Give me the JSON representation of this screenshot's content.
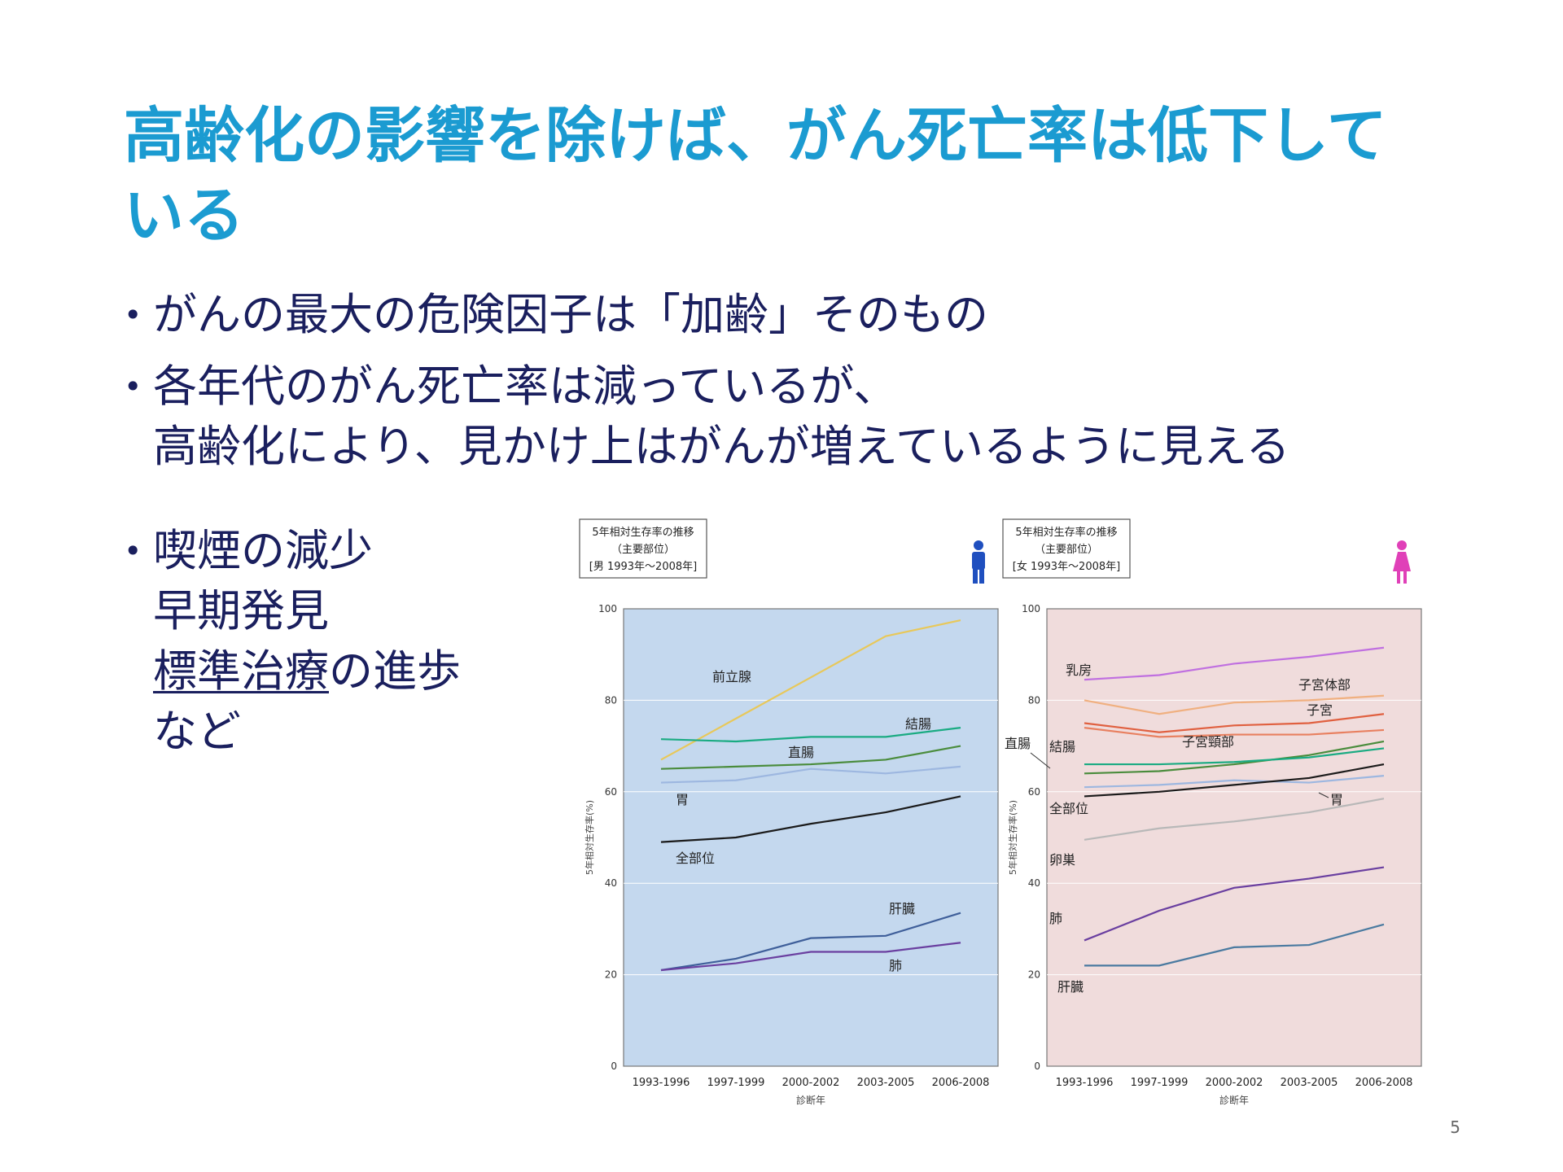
{
  "title": {
    "line1": "高齢化の影響を除けば、がん死亡率は低下して",
    "line2": "いる"
  },
  "bullets": [
    {
      "lines": [
        "がんの最大の危険因子は「加齢」そのもの"
      ]
    },
    {
      "lines": [
        "各年代のがん死亡率は減っているが、",
        "高齢化により、見かけ上はがんが増えているように見える"
      ]
    },
    {
      "lines": [
        "喫煙の減少",
        "早期発見",
        "標準治療の進歩",
        "など"
      ],
      "underlined": "標準治療"
    }
  ],
  "page_number": "5",
  "chart_data": [
    {
      "type": "line",
      "legend_box": [
        "5年相対生存率の推移",
        "（主要部位）",
        "[男 1993年～2008年]"
      ],
      "gender_icon": "male-figure-icon",
      "gender_color": "#1f4fbf",
      "background": "#c4d8ee",
      "categories": [
        "1993-1996",
        "1997-1999",
        "2000-2002",
        "2003-2005",
        "2006-2008"
      ],
      "ylabel": "5年相対生存率(%)",
      "xlabel": "診断年",
      "ylim": [
        0,
        100
      ],
      "yticks": [
        0,
        20,
        40,
        60,
        80,
        100
      ],
      "series": [
        {
          "name": "前立腺",
          "color": "#e8c85a",
          "values": [
            67,
            76,
            85,
            94,
            97.5
          ]
        },
        {
          "name": "結腸",
          "color": "#1aab82",
          "values": [
            71.5,
            71,
            72,
            72,
            74
          ]
        },
        {
          "name": "直腸",
          "color": "#4a8c3c",
          "values": [
            65,
            65.5,
            66,
            67,
            70
          ]
        },
        {
          "name": "胃",
          "color": "#9db7e0",
          "values": [
            62,
            62.5,
            65,
            64,
            65.5
          ]
        },
        {
          "name": "全部位",
          "color": "#1a1a1a",
          "values": [
            49,
            50,
            53,
            55.5,
            59
          ]
        },
        {
          "name": "肝臓",
          "color": "#3f5f9a",
          "values": [
            21,
            23.5,
            28,
            28.5,
            33.5
          ]
        },
        {
          "name": "肺",
          "color": "#6a3fa0",
          "values": [
            21,
            22.5,
            25,
            25,
            27
          ]
        }
      ]
    },
    {
      "type": "line",
      "legend_box": [
        "5年相対生存率の推移",
        "（主要部位）",
        "[女 1993年～2008年]"
      ],
      "gender_icon": "female-figure-icon",
      "gender_color": "#e040b8",
      "background": "#f0dcdc",
      "categories": [
        "1993-1996",
        "1997-1999",
        "2000-2002",
        "2003-2005",
        "2006-2008"
      ],
      "ylabel": "5年相対生存率(%)",
      "xlabel": "診断年",
      "ylim": [
        0,
        100
      ],
      "yticks": [
        0,
        20,
        40,
        60,
        80,
        100
      ],
      "series": [
        {
          "name": "乳房",
          "color": "#c070e0",
          "values": [
            84.5,
            85.5,
            88,
            89.5,
            91.5
          ]
        },
        {
          "name": "子宮体部",
          "color": "#f0b080",
          "values": [
            80,
            77,
            79.5,
            80,
            81
          ]
        },
        {
          "name": "子宮",
          "color": "#e06040",
          "values": [
            75,
            73,
            74.5,
            75,
            77
          ]
        },
        {
          "name": "子宮頸部",
          "color": "#e88060",
          "values": [
            74,
            72,
            72.5,
            72.5,
            73.5
          ]
        },
        {
          "name": "直腸",
          "color": "#4a8c3c",
          "values": [
            64,
            64.5,
            66,
            68,
            71
          ]
        },
        {
          "name": "結腸",
          "color": "#1aab82",
          "values": [
            66,
            66,
            66.5,
            67.5,
            69.5
          ]
        },
        {
          "name": "胃",
          "color": "#9db7e0",
          "values": [
            61,
            61.5,
            62.5,
            62,
            63.5
          ]
        },
        {
          "name": "全部位",
          "color": "#1a1a1a",
          "values": [
            59,
            60,
            61.5,
            63,
            66
          ]
        },
        {
          "name": "卵巣",
          "color": "#b8b8b8",
          "values": [
            49.5,
            52,
            53.5,
            55.5,
            58.5
          ]
        },
        {
          "name": "肺",
          "color": "#6a3fa0",
          "values": [
            27.5,
            34,
            39,
            41,
            43.5
          ]
        },
        {
          "name": "肝臓",
          "color": "#4a7aa0",
          "values": [
            22,
            22,
            26,
            26.5,
            31
          ]
        }
      ]
    }
  ]
}
